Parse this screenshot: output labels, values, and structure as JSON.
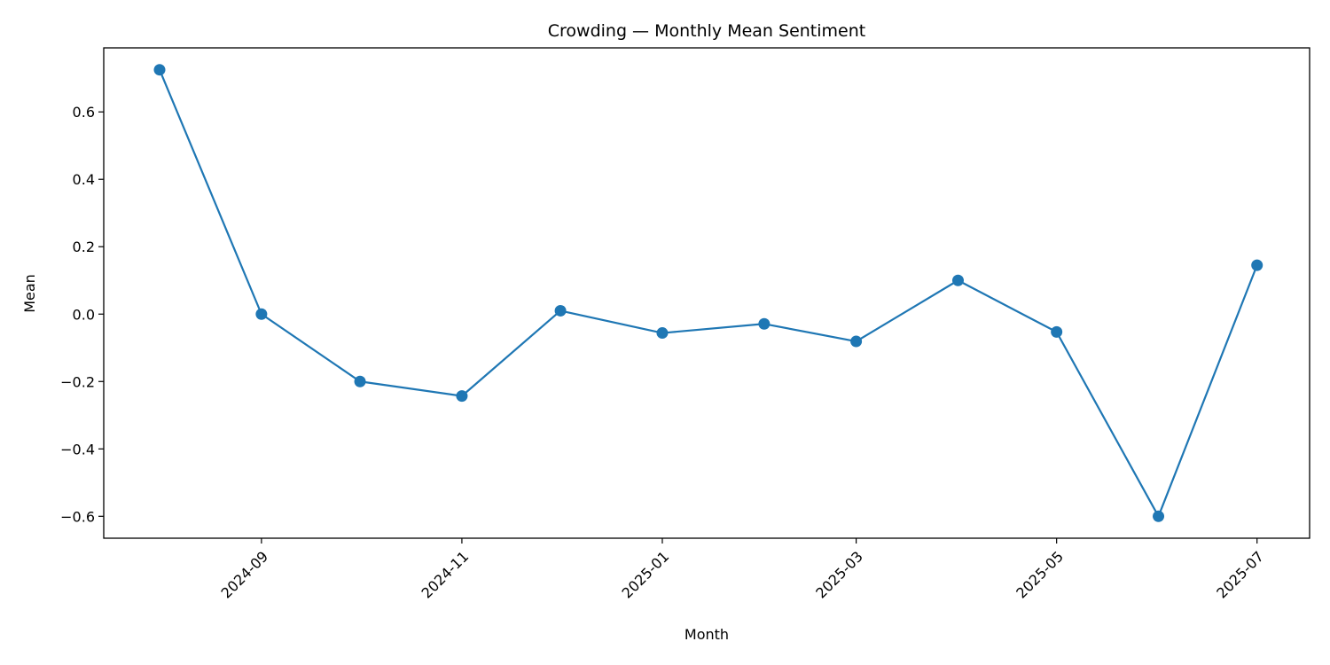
{
  "chart_data": {
    "type": "line",
    "title": "Crowding — Monthly Mean Sentiment",
    "xlabel": "Month",
    "ylabel": "Mean",
    "x_tick_labels": [
      "2024-09",
      "2024-11",
      "2025-01",
      "2025-03",
      "2025-05",
      "2025-07"
    ],
    "y_tick_labels": [
      "−0.6",
      "−0.4",
      "−0.2",
      "0.0",
      "0.2",
      "0.4",
      "0.6"
    ],
    "y_ticks": [
      -0.6,
      -0.4,
      -0.2,
      0.0,
      0.2,
      0.4,
      0.6
    ],
    "ylim": [
      -0.665,
      0.79
    ],
    "xlim": [
      "2024-07-15",
      "2025-07-17"
    ],
    "grid": false,
    "series": [
      {
        "color": "#1f77b4",
        "marker": "circle",
        "x": [
          "2024-08-01",
          "2024-09-01",
          "2024-10-01",
          "2024-11-01",
          "2024-12-01",
          "2025-01-01",
          "2025-02-01",
          "2025-03-01",
          "2025-04-01",
          "2025-05-01",
          "2025-06-01",
          "2025-07-01"
        ],
        "y": [
          0.725,
          0.0,
          -0.2,
          -0.243,
          0.01,
          -0.056,
          -0.029,
          -0.081,
          0.1,
          -0.053,
          -0.6,
          0.145
        ]
      }
    ]
  }
}
